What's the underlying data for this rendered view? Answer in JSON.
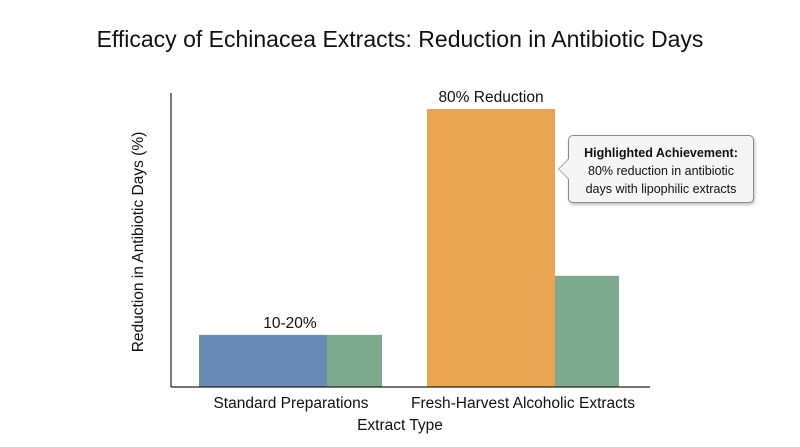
{
  "chart_data": {
    "type": "bar",
    "title": "Efficacy of Echinacea Extracts: Reduction in Antibiotic Days",
    "xlabel": "Extract Type",
    "ylabel": "Reduction in Antibiotic Days (%)",
    "categories": [
      "Standard Preparations",
      "Fresh-Harvest Alcoholic Extracts"
    ],
    "series": [
      {
        "values": [
          15,
          80
        ],
        "colors": [
          "#6a8ab8",
          "#eba552"
        ]
      },
      {
        "values": [
          15,
          32
        ],
        "colors": [
          "#7fa98e",
          "#7fa98e"
        ]
      }
    ],
    "data_labels": [
      "10-20%",
      "80% Reduction"
    ],
    "ylim": [
      0,
      100
    ],
    "grid": false,
    "annotation": {
      "heading": "Highlighted Achievement:",
      "body": "80% reduction in antibiotic days with lipophilic extracts"
    }
  }
}
